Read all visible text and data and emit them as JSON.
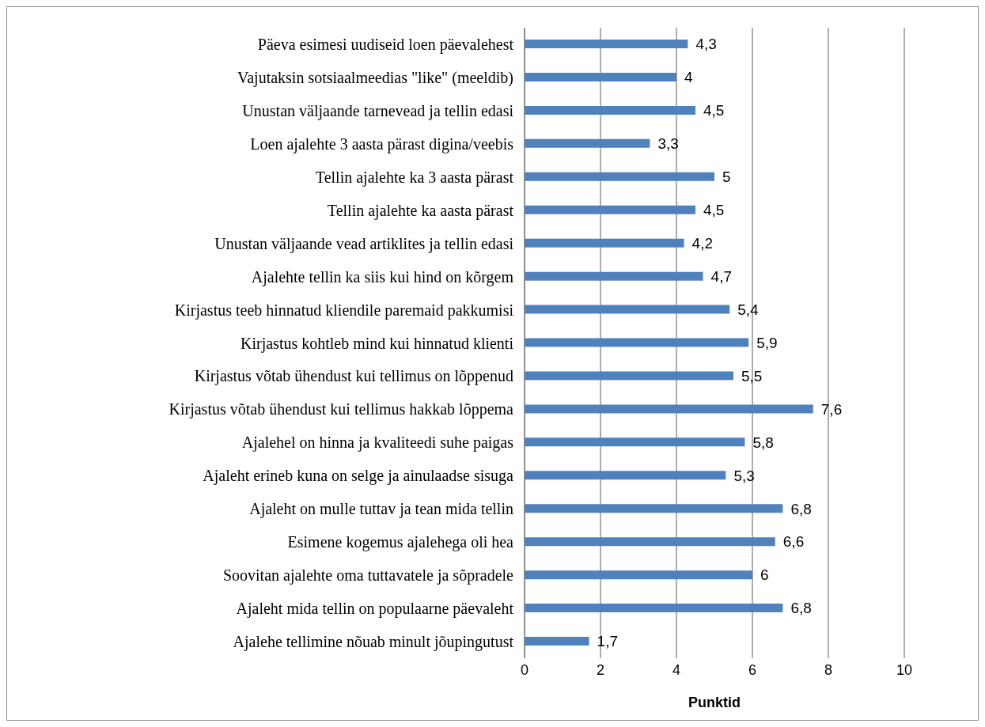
{
  "chart_data": {
    "type": "bar",
    "orientation": "horizontal",
    "xlabel": "Punktid",
    "categories": [
      "Päeva esimesi uudiseid loen päevalehest",
      "Vajutaksin sotsiaalmeedias \"like\" (meeldib)",
      "Unustan väljaande tarnevead ja tellin edasi",
      "Loen ajalehte 3 aasta pärast digina/veebis",
      "Tellin ajalehte ka 3 aasta pärast",
      "Tellin ajalehte ka aasta pärast",
      "Unustan väljaande vead artiklites ja tellin edasi",
      "Ajalehte tellin ka siis kui hind on kõrgem",
      "Kirjastus teeb hinnatud kliendile paremaid pakkumisi",
      "Kirjastus kohtleb mind kui hinnatud klienti",
      "Kirjastus võtab ühendust kui tellimus on lõppenud",
      "Kirjastus võtab ühendust kui tellimus hakkab lõppema",
      "Ajalehel on hinna ja kvaliteedi suhe paigas",
      "Ajaleht erineb kuna on selge ja ainulaadse sisuga",
      "Ajaleht on mulle tuttav ja tean mida tellin",
      "Esimene kogemus ajalehega oli hea",
      "Soovitan ajalehte oma tuttavatele ja sõpradele",
      "Ajaleht mida tellin on populaarne päevaleht",
      "Ajalehe tellimine nõuab minult jõupingutust"
    ],
    "values": [
      4.3,
      4,
      4.5,
      3.3,
      5,
      4.5,
      4.2,
      4.7,
      5.4,
      5.9,
      5.5,
      7.6,
      5.8,
      5.3,
      6.8,
      6.6,
      6,
      6.8,
      1.7
    ],
    "value_labels": [
      "4,3",
      "4",
      "4,5",
      "3,3",
      "5",
      "4,5",
      "4,2",
      "4,7",
      "5,4",
      "5,9",
      "5,5",
      "7,6",
      "5,8",
      "5,3",
      "6,8",
      "6,6",
      "6",
      "6,8",
      "1,7"
    ],
    "color": "#4f81bd",
    "xlim": [
      0,
      10
    ],
    "xticks": [
      0,
      2,
      4,
      6,
      8,
      10
    ],
    "grid": "x"
  }
}
